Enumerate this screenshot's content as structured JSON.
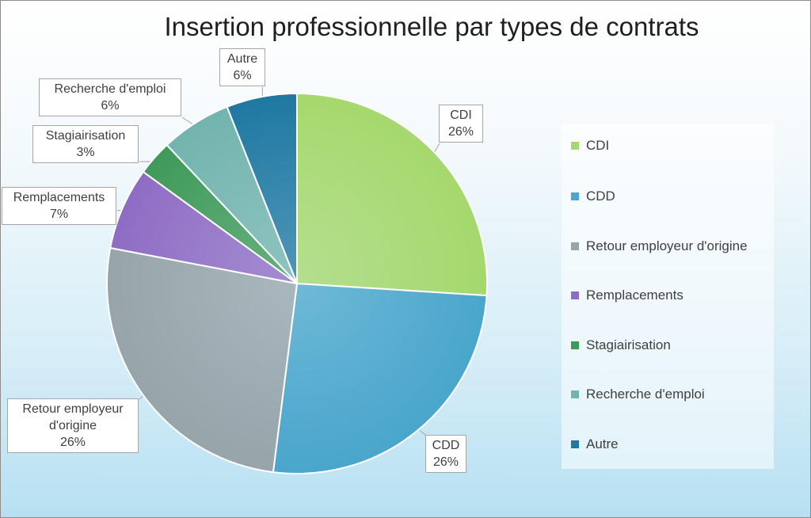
{
  "chart_data": {
    "type": "pie",
    "title": "Insertion professionnelle par types de contrats",
    "legend_position": "right",
    "slices": [
      {
        "name": "CDI",
        "value": 26,
        "label": "26%",
        "color": "#a5d86d"
      },
      {
        "name": "CDD",
        "value": 26,
        "label": "26%",
        "color": "#4aa6cc"
      },
      {
        "name": "Retour employeur d'origine",
        "value": 26,
        "label": "26%",
        "color": "#97a5aa"
      },
      {
        "name": "Remplacements",
        "value": 7,
        "label": "7%",
        "color": "#8f6cc4"
      },
      {
        "name": "Stagiairisation",
        "value": 3,
        "label": "3%",
        "color": "#3f9a5a"
      },
      {
        "name": "Recherche d'emploi",
        "value": 6,
        "label": "6%",
        "color": "#72b4ae"
      },
      {
        "name": "Autre",
        "value": 6,
        "label": "6%",
        "color": "#1e78a2"
      }
    ]
  },
  "callout_text": {
    "retour_line1": "Retour employeur",
    "retour_line2": "d'origine"
  }
}
